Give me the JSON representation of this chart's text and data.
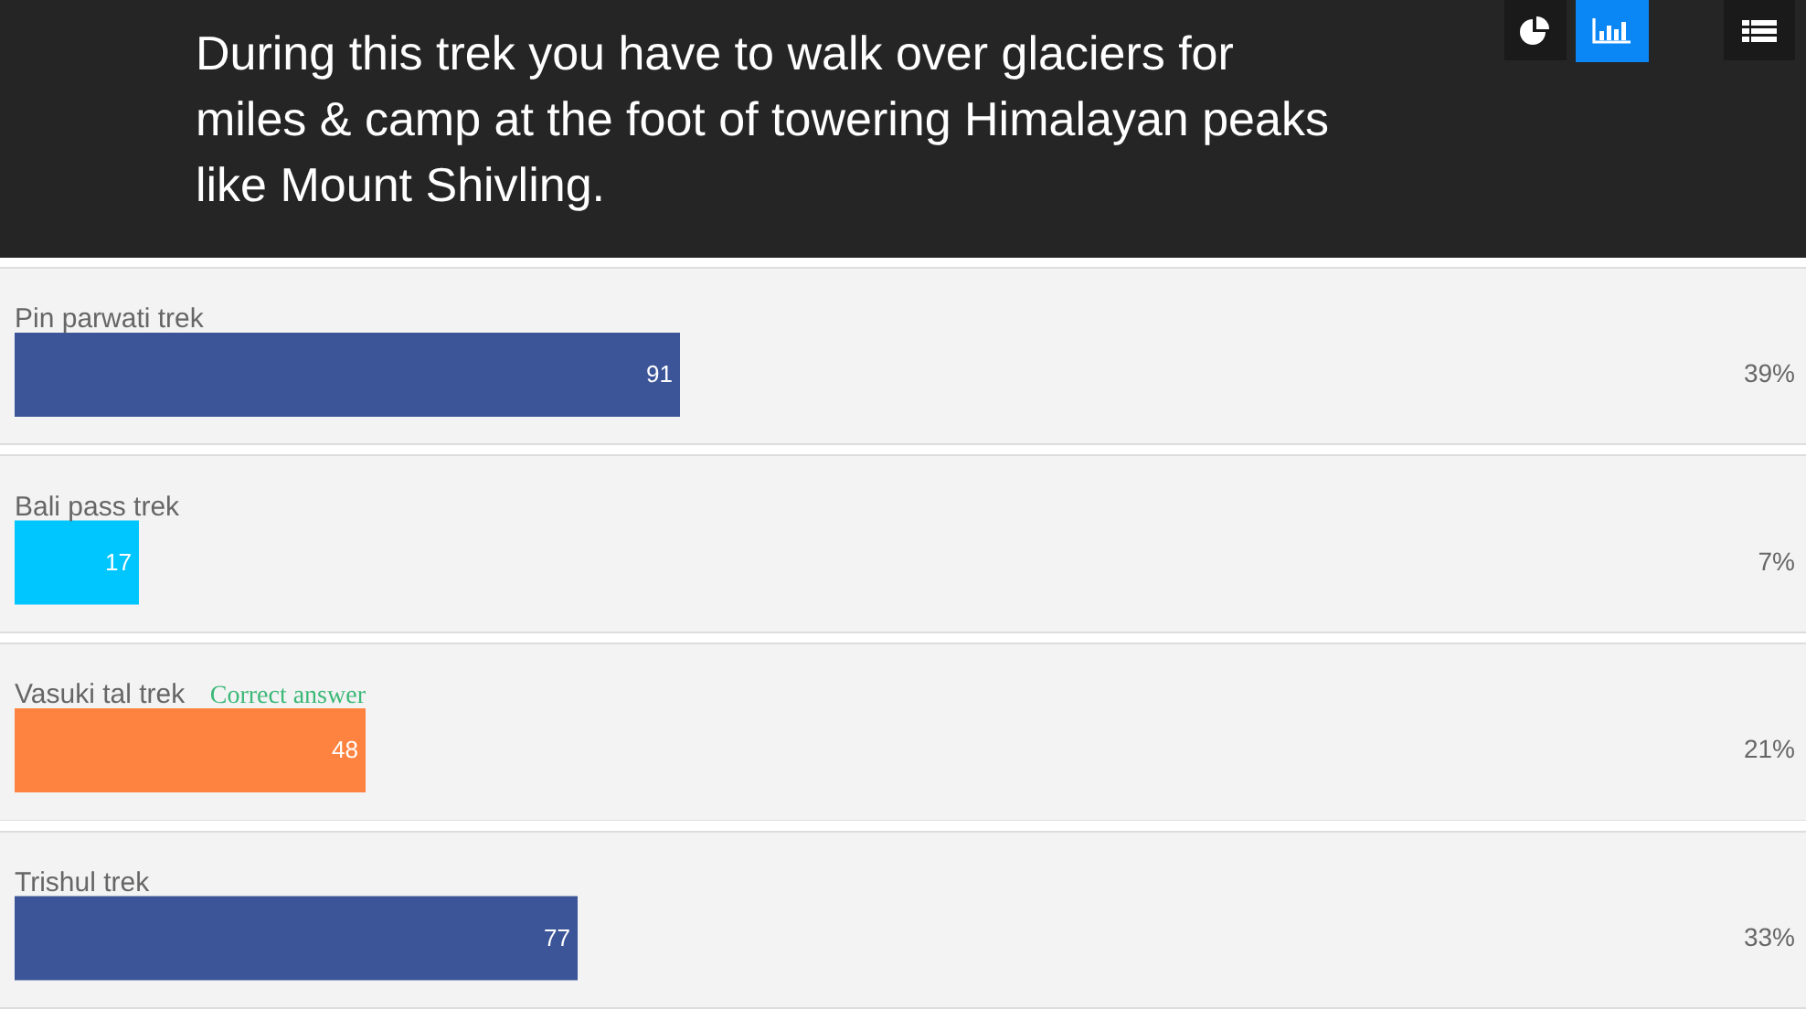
{
  "chart_data": {
    "type": "bar",
    "orientation": "horizontal",
    "title": "During this trek you have to walk over glaciers for miles & camp at the foot of towering Himalayan peaks like Mount Shivling.",
    "categories": [
      "Pin parwati trek",
      "Bali pass trek",
      "Vasuki tal trek",
      "Trishul trek"
    ],
    "values": [
      91,
      17,
      48,
      77
    ],
    "colors": [
      "#3b5598",
      "#00c6ff",
      "#ff8340",
      "#3b5598"
    ],
    "data_labels": true,
    "annotations": [
      {
        "text": "Correct answer",
        "x": 48,
        "y": "Vasuki tal trek"
      },
      "39%",
      "7%",
      "21%",
      "33%"
    ]
  }
}
